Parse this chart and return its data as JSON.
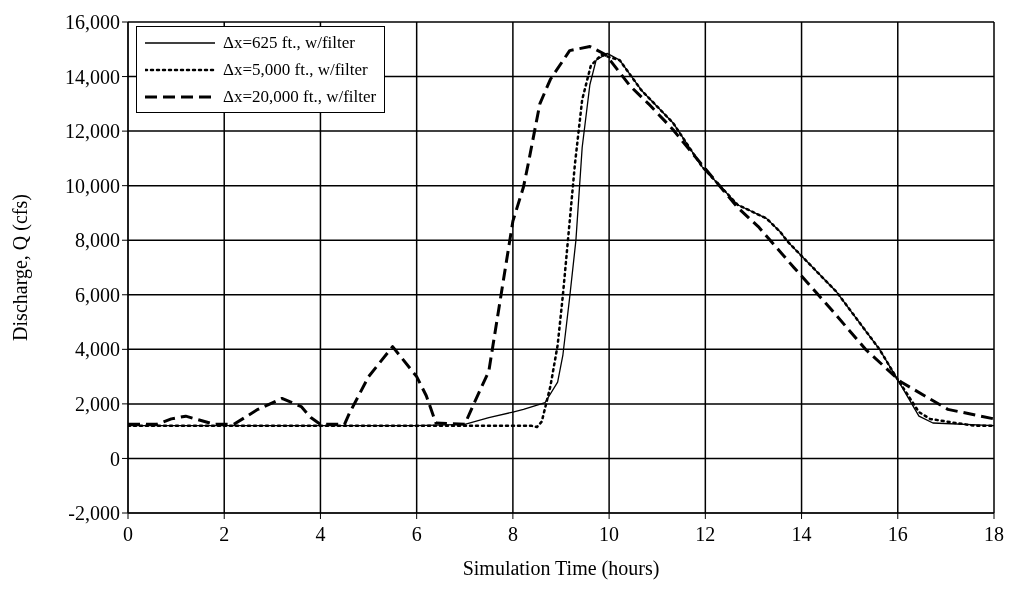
{
  "chart_data": {
    "type": "line",
    "xlabel": "Simulation Time (hours)",
    "ylabel": "Discharge, Q (cfs)",
    "xlim": [
      0,
      18
    ],
    "ylim": [
      -2000,
      16000
    ],
    "xticks": [
      0,
      2,
      4,
      6,
      8,
      10,
      12,
      14,
      16,
      18
    ],
    "yticks": [
      {
        "value": -2000,
        "label": "-2,000"
      },
      0,
      {
        "value": 2000,
        "label": "2,000"
      },
      {
        "value": 4000,
        "label": "4,000"
      },
      {
        "value": 6000,
        "label": "6,000"
      },
      {
        "value": 8000,
        "label": "8,000"
      },
      {
        "value": 10000,
        "label": "10,000"
      },
      {
        "value": 12000,
        "label": "12,000"
      },
      {
        "value": 14000,
        "label": "14,000"
      },
      {
        "value": 16000,
        "label": "16,000"
      }
    ],
    "grid": true,
    "legend": "top left",
    "marker": "none",
    "series": [
      {
        "name": "Δx=625 ft., w/filter",
        "color": "#000000",
        "line_style": "solid",
        "x": [
          0,
          2,
          4,
          6,
          7,
          7.5,
          8,
          8.22,
          8.67,
          8.93,
          9.04,
          9.18,
          9.31,
          9.44,
          9.6,
          9.73,
          9.96,
          10.22,
          10.67,
          11.33,
          11.93,
          12.67,
          13.27,
          13.56,
          13.71,
          14.73,
          15.62,
          15.96,
          16.44,
          16.73,
          18
        ],
        "values": [
          1200,
          1200,
          1200,
          1200,
          1250,
          1500,
          1700,
          1800,
          2050,
          2800,
          3800,
          5900,
          8000,
          11400,
          13700,
          14600,
          14850,
          14600,
          13500,
          12300,
          10700,
          9300,
          8800,
          8300,
          7950,
          6100,
          4000,
          3000,
          1550,
          1300,
          1200
        ]
      },
      {
        "name": "Δx=5,000 ft., w/filter",
        "color": "#000000",
        "line_style": "dotted",
        "x": [
          0,
          2,
          4,
          6,
          8,
          8.38,
          8.5,
          8.6,
          8.78,
          8.93,
          9.04,
          9.16,
          9.29,
          9.44,
          9.62,
          9.84,
          10.22,
          10.67,
          11.33,
          11.93,
          12.67,
          13.27,
          13.56,
          13.71,
          14.73,
          15.62,
          15.96,
          16.44,
          16.67,
          17.2,
          17.6,
          18
        ],
        "values": [
          1200,
          1200,
          1200,
          1200,
          1200,
          1200,
          1150,
          1350,
          2650,
          4150,
          6000,
          8300,
          10800,
          13150,
          14400,
          14800,
          14600,
          13500,
          12300,
          10700,
          9300,
          8800,
          8300,
          7950,
          6100,
          4000,
          3000,
          1700,
          1450,
          1300,
          1200,
          1200
        ]
      },
      {
        "name": "Δx=20,000 ft., w/filter",
        "color": "#000000",
        "line_style": "dashed",
        "x": [
          0,
          0.6,
          0.9,
          1.2,
          1.5,
          1.8,
          2.2,
          2.7,
          3.2,
          3.6,
          3.8,
          4,
          4.5,
          4.6,
          5,
          5.5,
          6,
          6.2,
          6.4,
          7,
          7.2,
          7.5,
          7.8,
          8,
          8.22,
          8.33,
          8.56,
          8.78,
          9.18,
          9.6,
          9.93,
          10.44,
          10.82,
          11.33,
          11.56,
          12.67,
          13.1,
          13.84,
          14.6,
          15.33,
          16.07,
          17.04,
          18
        ],
        "values": [
          1250,
          1250,
          1450,
          1550,
          1400,
          1250,
          1250,
          1800,
          2200,
          1900,
          1500,
          1250,
          1250,
          1650,
          3000,
          4100,
          3000,
          2300,
          1300,
          1250,
          2050,
          3200,
          6500,
          8700,
          9950,
          10900,
          13000,
          13900,
          14950,
          15100,
          14800,
          13650,
          13000,
          12050,
          11550,
          9200,
          8500,
          7000,
          5500,
          4000,
          2800,
          1800,
          1450
        ]
      }
    ]
  }
}
